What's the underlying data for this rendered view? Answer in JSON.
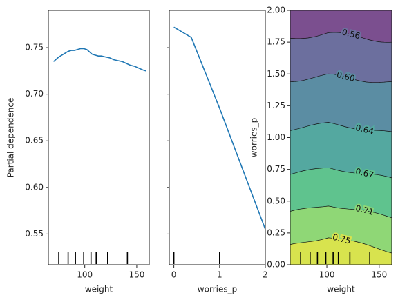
{
  "chart_data": [
    {
      "type": "line",
      "xlabel": "weight",
      "ylabel": "Partial dependence",
      "xlim": [
        65,
        162
      ],
      "ylim": [
        0.517,
        0.79
      ],
      "x_ticks": [
        100,
        150
      ],
      "y_ticks": [
        0.55,
        0.6,
        0.65,
        0.7,
        0.75
      ],
      "x": [
        70,
        72,
        75,
        78,
        81,
        84,
        87,
        90,
        93,
        96,
        99,
        102,
        105,
        107,
        110,
        113,
        116,
        120,
        124,
        128,
        132,
        136,
        140,
        144,
        148,
        152,
        156,
        159
      ],
      "y": [
        0.735,
        0.737,
        0.74,
        0.742,
        0.744,
        0.746,
        0.747,
        0.747,
        0.748,
        0.749,
        0.749,
        0.748,
        0.745,
        0.743,
        0.742,
        0.741,
        0.741,
        0.74,
        0.739,
        0.737,
        0.736,
        0.735,
        0.733,
        0.731,
        0.73,
        0.728,
        0.726,
        0.725
      ],
      "deciles": [
        75,
        84,
        91,
        99,
        106,
        111,
        122,
        141
      ]
    },
    {
      "type": "line",
      "xlabel": "worries_p",
      "ylabel": "",
      "xlim": [
        -0.1,
        2.0
      ],
      "ylim": [
        0.517,
        0.79
      ],
      "x_ticks": [
        0,
        1,
        2
      ],
      "y_ticks": [
        0.55,
        0.6,
        0.65,
        0.7,
        0.75
      ],
      "x": [
        0,
        0.38,
        1.0,
        2.0
      ],
      "y": [
        0.772,
        0.761,
        0.685,
        0.555
      ],
      "deciles": [
        0,
        1
      ]
    },
    {
      "type": "heatmap",
      "xlabel": "weight",
      "ylabel": "worries_p",
      "xlim": [
        65,
        162
      ],
      "ylim": [
        0.0,
        2.0
      ],
      "x_ticks": [
        100,
        150
      ],
      "y_ticks": [
        0.0,
        0.25,
        0.5,
        0.75,
        1.0,
        1.25,
        1.5,
        1.75,
        2.0
      ],
      "y_tick_labels": [
        "0.00",
        "0.25",
        "0.50",
        "0.75",
        "1.00",
        "1.25",
        "1.50",
        "1.75",
        "2.00"
      ],
      "contour_levels": [
        0.56,
        0.6,
        0.64,
        0.67,
        0.71,
        0.75
      ],
      "contour_label_text": [
        "0.56",
        "0.60",
        "0.64",
        "0.67",
        "0.71",
        "0.75"
      ],
      "colormap": "viridis",
      "deciles": [
        75,
        84,
        91,
        99,
        106,
        111,
        122,
        141
      ]
    }
  ]
}
